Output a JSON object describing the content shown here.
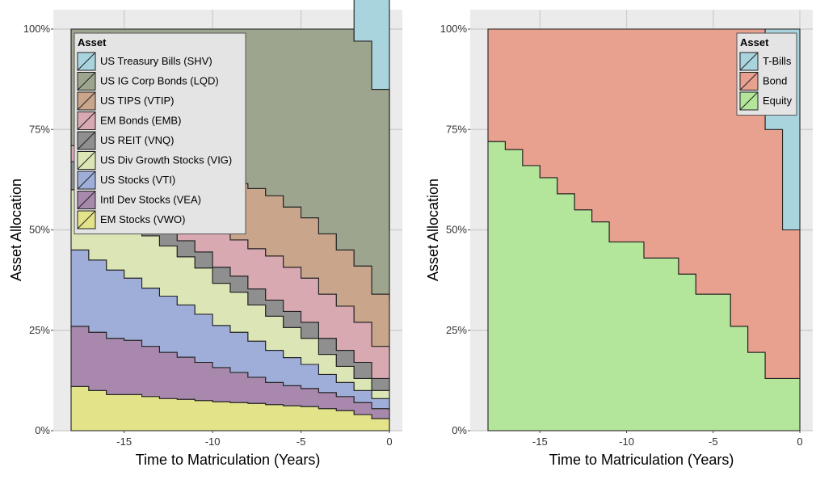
{
  "chart_data": [
    {
      "type": "area",
      "subtype": "stacked-step",
      "xlabel": "Time to Matriculation (Years)",
      "ylabel": "Asset Allocation",
      "xlim": [
        -18,
        0
      ],
      "ylim": [
        0,
        1
      ],
      "x_ticks": [
        -15,
        -10,
        -5,
        0
      ],
      "x_tick_labels": [
        "-15",
        "-10",
        "-5",
        "0"
      ],
      "y_ticks": [
        0,
        0.25,
        0.5,
        0.75,
        1
      ],
      "y_tick_labels": [
        "0%",
        "25%",
        "50%",
        "75%",
        "100%"
      ],
      "grid": true,
      "legend": {
        "title": "Asset",
        "position": "top-left"
      },
      "x": [
        -18,
        -17,
        -16,
        -15,
        -14,
        -13,
        -12,
        -11,
        -10,
        -9,
        -8,
        -7,
        -6,
        -5,
        -4,
        -3,
        -2,
        -1,
        0
      ],
      "series": [
        {
          "name": "EM Stocks (VWO)",
          "color": "#e3e38a",
          "values": [
            0.11,
            0.1,
            0.09,
            0.09,
            0.085,
            0.08,
            0.078,
            0.075,
            0.072,
            0.07,
            0.068,
            0.065,
            0.062,
            0.06,
            0.055,
            0.05,
            0.04,
            0.03,
            0.025
          ]
        },
        {
          "name": "Intl Dev Stocks (VEA)",
          "color": "#a889ad",
          "values": [
            0.15,
            0.145,
            0.14,
            0.135,
            0.125,
            0.115,
            0.105,
            0.095,
            0.085,
            0.075,
            0.065,
            0.055,
            0.05,
            0.045,
            0.04,
            0.035,
            0.03,
            0.025,
            0.025
          ]
        },
        {
          "name": "US Stocks (VTI)",
          "color": "#9eaed8",
          "values": [
            0.19,
            0.18,
            0.17,
            0.155,
            0.145,
            0.14,
            0.13,
            0.12,
            0.105,
            0.1,
            0.09,
            0.08,
            0.07,
            0.06,
            0.045,
            0.035,
            0.03,
            0.025,
            0.03
          ]
        },
        {
          "name": "US Div Growth Stocks (VIG)",
          "color": "#dce5b5",
          "values": [
            0.15,
            0.15,
            0.15,
            0.14,
            0.13,
            0.125,
            0.12,
            0.115,
            0.105,
            0.1,
            0.09,
            0.085,
            0.075,
            0.065,
            0.05,
            0.04,
            0.03,
            0.02,
            0.02
          ]
        },
        {
          "name": "US REIT (VNQ)",
          "color": "#8f8f8f",
          "values": [
            0.07,
            0.06,
            0.05,
            0.04,
            0.04,
            0.04,
            0.04,
            0.04,
            0.04,
            0.04,
            0.04,
            0.04,
            0.04,
            0.04,
            0.04,
            0.04,
            0.04,
            0.03,
            0.03
          ]
        },
        {
          "name": "EM Bonds (EMB)",
          "color": "#d9a9b2",
          "values": [
            0.04,
            0.04,
            0.04,
            0.05,
            0.06,
            0.07,
            0.075,
            0.08,
            0.085,
            0.09,
            0.1,
            0.11,
            0.11,
            0.11,
            0.11,
            0.11,
            0.1,
            0.08,
            0.07
          ]
        },
        {
          "name": "US TIPS (VTIP)",
          "color": "#c9a58b",
          "values": [
            0.0,
            0.0,
            0.0,
            0.0,
            0.0,
            0.0,
            0.05,
            0.1,
            0.13,
            0.14,
            0.15,
            0.15,
            0.15,
            0.15,
            0.15,
            0.14,
            0.14,
            0.13,
            0.125
          ]
        },
        {
          "name": "US IG Corp Bonds (LQD)",
          "color": "#9da58e",
          "values": [
            0.29,
            0.325,
            0.36,
            0.39,
            0.415,
            0.43,
            0.402,
            0.375,
            0.378,
            0.385,
            0.397,
            0.415,
            0.443,
            0.47,
            0.51,
            0.55,
            0.56,
            0.51,
            0.175
          ]
        },
        {
          "name": "US Treasury Bills (SHV)",
          "color": "#a9d4de",
          "values": [
            0.0,
            0.0,
            0.0,
            0.0,
            0.0,
            0.0,
            0.0,
            0.0,
            0.0,
            0.0,
            0.0,
            0.0,
            0.0,
            0.0,
            0.0,
            0.0,
            0.2,
            0.3,
            0.5
          ]
        }
      ]
    },
    {
      "type": "area",
      "subtype": "stacked-step",
      "xlabel": "Time to Matriculation (Years)",
      "ylabel": "Asset Allocation",
      "xlim": [
        -18,
        0
      ],
      "ylim": [
        0,
        1
      ],
      "x_ticks": [
        -15,
        -10,
        -5,
        0
      ],
      "x_tick_labels": [
        "-15",
        "-10",
        "-5",
        "0"
      ],
      "y_ticks": [
        0,
        0.25,
        0.5,
        0.75,
        1
      ],
      "y_tick_labels": [
        "0%",
        "25%",
        "50%",
        "75%",
        "100%"
      ],
      "grid": true,
      "legend": {
        "title": "Asset",
        "position": "top-right"
      },
      "x": [
        -18,
        -17,
        -16,
        -15,
        -14,
        -13,
        -12,
        -11,
        -10,
        -9,
        -8,
        -7,
        -6,
        -5,
        -4,
        -3,
        -2,
        -1,
        0
      ],
      "series": [
        {
          "name": "Equity",
          "color": "#b3e59a",
          "values": [
            0.72,
            0.7,
            0.66,
            0.63,
            0.59,
            0.55,
            0.52,
            0.47,
            0.47,
            0.43,
            0.43,
            0.39,
            0.34,
            0.34,
            0.26,
            0.195,
            0.13,
            0.13,
            0.13
          ]
        },
        {
          "name": "Bond",
          "color": "#e8a08f",
          "values": [
            0.28,
            0.3,
            0.34,
            0.37,
            0.41,
            0.45,
            0.48,
            0.53,
            0.53,
            0.57,
            0.57,
            0.61,
            0.66,
            0.66,
            0.74,
            0.805,
            0.62,
            0.37,
            0.37
          ]
        },
        {
          "name": "T-Bills",
          "color": "#a9d4de",
          "values": [
            0,
            0,
            0,
            0,
            0,
            0,
            0,
            0,
            0,
            0,
            0,
            0,
            0,
            0,
            0,
            0,
            0.25,
            0.5,
            0.5
          ]
        }
      ]
    }
  ]
}
